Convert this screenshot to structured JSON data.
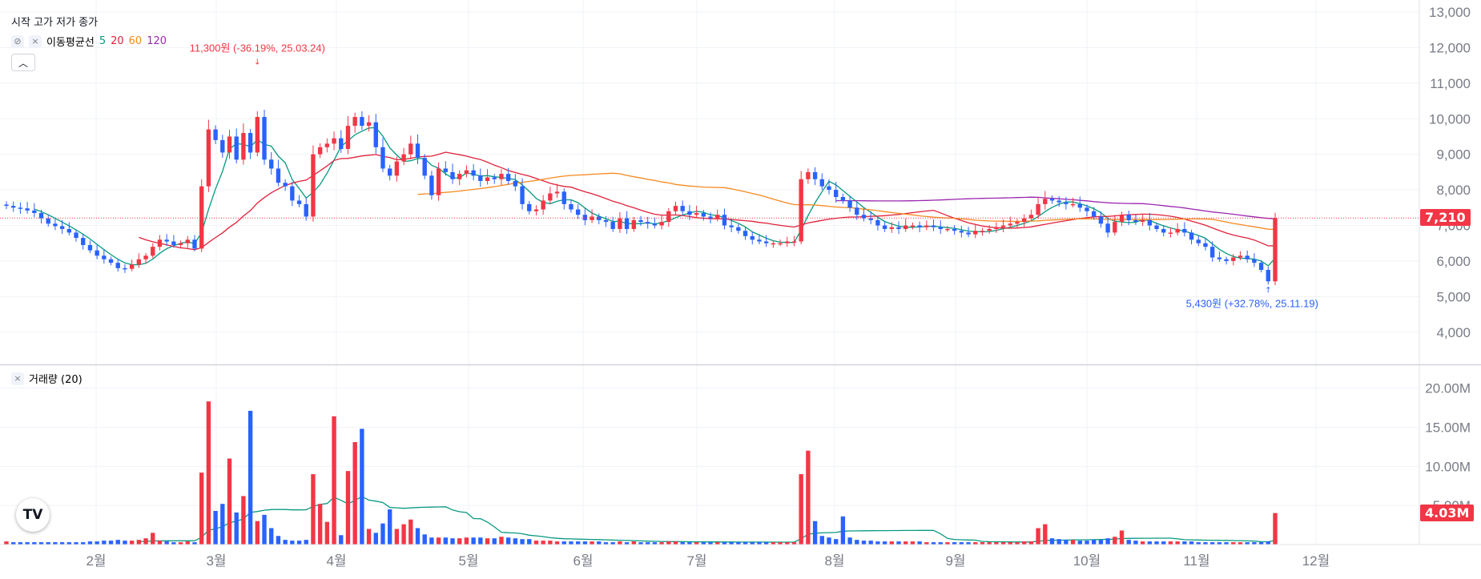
{
  "legend": {
    "ohlc_label": "시작 고가 저가 종가",
    "ma_label": "이동평균선",
    "ma_periods": [
      "5",
      "20",
      "60",
      "120"
    ],
    "volume_label": "거래량 (20)"
  },
  "annotations": {
    "high": "11,300원 (-36.19%, 25.03.24)",
    "low": "5,430원 (+32.78%, 25.11.19)"
  },
  "last_price_tag": "7,210",
  "last_volume_tag": "4.03M",
  "colors": {
    "up": "#f23645",
    "down": "#2962ff",
    "ma5": "#089981",
    "ma20": "#e0213a",
    "ma60": "#f7891f",
    "ma120": "#9c27b0",
    "volume_ma": "#089981"
  },
  "icons": [
    "eye-off-icon",
    "close-icon",
    "chevron-up-icon",
    "tradingview-logo-icon"
  ],
  "chart_data": [
    {
      "type": "candlestick",
      "x_ticks": [
        "2월",
        "3월",
        "4월",
        "5월",
        "6월",
        "7월",
        "8월",
        "9월",
        "10월",
        "11월",
        "12월"
      ],
      "y_ticks": [
        "4,000",
        "5,000",
        "6,000",
        "7,000",
        "8,000",
        "9,000",
        "10,000",
        "11,000",
        "12,000",
        "13,000"
      ],
      "ylim": [
        3500,
        13000
      ],
      "last_price": 7210,
      "high_price": 11300,
      "low_price": 5430,
      "closes": [
        7550,
        7500,
        7480,
        7420,
        7350,
        7200,
        7050,
        6980,
        6900,
        6800,
        6650,
        6450,
        6300,
        6150,
        6050,
        5950,
        5800,
        5780,
        5900,
        6050,
        6150,
        6400,
        6600,
        6550,
        6450,
        6500,
        6600,
        6350,
        8100,
        9700,
        9400,
        9050,
        9500,
        8850,
        9600,
        9050,
        10050,
        8850,
        8600,
        8200,
        8100,
        7700,
        7600,
        7250,
        9000,
        9200,
        9300,
        9450,
        9150,
        9800,
        10050,
        9800,
        9900,
        9200,
        8600,
        8400,
        8800,
        9000,
        9300,
        8900,
        8400,
        7850,
        8600,
        8500,
        8300,
        8450,
        8550,
        8400,
        8250,
        8350,
        8300,
        8450,
        8250,
        8100,
        7600,
        7400,
        7450,
        7700,
        7900,
        7950,
        7600,
        7450,
        7300,
        7150,
        7250,
        7150,
        7100,
        6900,
        7200,
        6900,
        7150,
        7100,
        7050,
        7000,
        7100,
        7400,
        7550,
        7400,
        7300,
        7350,
        7250,
        7200,
        7300,
        7000,
        6950,
        6850,
        6700,
        6600,
        6550,
        6500,
        6500,
        6500,
        6550,
        6550,
        8300,
        8500,
        8300,
        8100,
        8000,
        7800,
        7700,
        7500,
        7300,
        7200,
        7150,
        7000,
        6900,
        6950,
        6900,
        7000,
        7000,
        6950,
        7000,
        6950,
        6900,
        6900,
        6850,
        6800,
        6750,
        6850,
        6850,
        6900,
        6950,
        7000,
        7050,
        7100,
        7200,
        7300,
        7600,
        7750,
        7700,
        7650,
        7600,
        7600,
        7500,
        7400,
        7250,
        7050,
        6800,
        7100,
        7300,
        7150,
        7100,
        7150,
        7000,
        6900,
        6800,
        6800,
        6900,
        6800,
        6600,
        6500,
        6400,
        6100,
        6050,
        6000,
        6100,
        6150,
        6050,
        5950,
        5750,
        5430,
        7210
      ],
      "series": [
        {
          "name": "5",
          "kind": "moving-average"
        },
        {
          "name": "20",
          "kind": "moving-average"
        },
        {
          "name": "60",
          "kind": "moving-average"
        },
        {
          "name": "120",
          "kind": "moving-average"
        }
      ]
    },
    {
      "type": "bar",
      "title": "거래량 (20)",
      "y_ticks": [
        "5.00M",
        "10.00M",
        "15.00M",
        "20.00M"
      ],
      "ylim": [
        0,
        21.5
      ],
      "last_volume": 4.03,
      "unit": "M",
      "volumes_m": [
        0.4,
        0.3,
        0.3,
        0.3,
        0.3,
        0.3,
        0.3,
        0.3,
        0.3,
        0.3,
        0.3,
        0.3,
        0.4,
        0.4,
        0.5,
        0.5,
        0.6,
        0.5,
        0.5,
        0.6,
        0.8,
        1.5,
        0.5,
        0.4,
        0.3,
        0.3,
        0.4,
        0.3,
        9.2,
        18.3,
        4.3,
        5.2,
        11.0,
        4.1,
        6.2,
        17.1,
        3.0,
        3.8,
        2.1,
        1.1,
        0.6,
        0.5,
        0.5,
        0.6,
        9.0,
        5.2,
        2.9,
        16.4,
        1.2,
        9.4,
        13.1,
        14.8,
        2.0,
        1.5,
        2.7,
        4.5,
        2.0,
        2.6,
        3.2,
        2.1,
        1.3,
        0.9,
        0.9,
        0.9,
        0.8,
        0.8,
        0.9,
        0.9,
        0.9,
        0.8,
        0.8,
        1.0,
        0.9,
        0.8,
        0.7,
        0.7,
        0.5,
        0.5,
        0.5,
        0.4,
        0.4,
        0.4,
        0.4,
        0.4,
        0.4,
        0.4,
        0.3,
        0.3,
        0.4,
        0.3,
        0.4,
        0.3,
        0.3,
        0.3,
        0.3,
        0.4,
        0.4,
        0.3,
        0.3,
        0.3,
        0.3,
        0.3,
        0.3,
        0.3,
        0.3,
        0.3,
        0.3,
        0.3,
        0.3,
        0.3,
        0.3,
        0.3,
        0.3,
        0.3,
        9.0,
        12.0,
        3.0,
        1.1,
        0.9,
        0.7,
        3.6,
        0.9,
        0.6,
        0.5,
        0.5,
        0.4,
        0.4,
        0.4,
        0.4,
        0.4,
        0.4,
        0.4,
        0.3,
        0.3,
        0.3,
        0.3,
        0.3,
        0.3,
        0.3,
        0.3,
        0.3,
        0.3,
        0.3,
        0.3,
        0.3,
        0.3,
        0.4,
        0.4,
        2.1,
        2.6,
        0.8,
        0.7,
        0.6,
        0.6,
        0.5,
        0.5,
        0.6,
        0.6,
        0.8,
        1.0,
        1.8,
        0.6,
        0.5,
        0.4,
        0.4,
        0.4,
        0.4,
        0.4,
        0.4,
        0.4,
        0.4,
        0.3,
        0.3,
        0.3,
        0.3,
        0.3,
        0.3,
        0.3,
        0.3,
        0.3,
        0.3,
        0.4,
        4.03
      ]
    }
  ]
}
